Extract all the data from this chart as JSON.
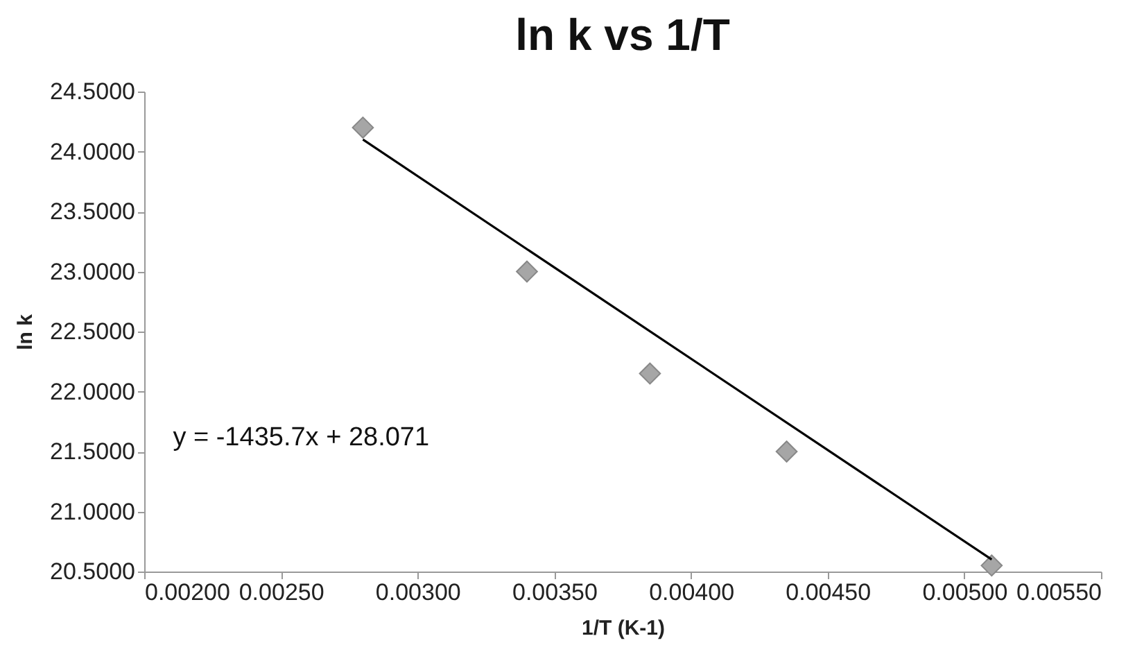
{
  "chart_data": {
    "type": "scatter",
    "title": "ln k vs 1/T",
    "xlabel": "1/T (K-1)",
    "ylabel": "ln k",
    "xlim": [
      0.002,
      0.0055
    ],
    "xticks": [
      {
        "value": 0.002,
        "label": "0.00200"
      },
      {
        "value": 0.0025,
        "label": "0.00250"
      },
      {
        "value": 0.003,
        "label": "0.00300"
      },
      {
        "value": 0.0035,
        "label": "0.00350"
      },
      {
        "value": 0.004,
        "label": "0.00400"
      },
      {
        "value": 0.0045,
        "label": "0.00450"
      },
      {
        "value": 0.005,
        "label": "0.00500"
      },
      {
        "value": 0.0055,
        "label": "0.00550"
      }
    ],
    "ylim": [
      20.5,
      24.5
    ],
    "yticks": [
      {
        "value": 20.5,
        "label": "20.5000"
      },
      {
        "value": 21,
        "label": "21.0000"
      },
      {
        "value": 21.5,
        "label": "21.5000"
      },
      {
        "value": 22,
        "label": "22.0000"
      },
      {
        "value": 22.5,
        "label": "22.5000"
      },
      {
        "value": 23,
        "label": "23.0000"
      },
      {
        "value": 23.5,
        "label": "23.5000"
      },
      {
        "value": 24,
        "label": "24.0000"
      },
      {
        "value": 24.5,
        "label": "24.5000"
      }
    ],
    "grid": false,
    "marker": "diamond",
    "annotations": [
      "y = -1435.7x + 28.071"
    ],
    "series": [
      {
        "color": "#a6a6a6",
        "x": [
          0.0028,
          0.0034,
          0.00385,
          0.00435,
          0.0051
        ],
        "values": [
          24.2,
          23.0,
          22.15,
          21.5,
          20.55
        ]
      },
      {
        "type": "line",
        "color": "#000000",
        "x": [
          0.0028,
          0.0051
        ],
        "values": [
          24.1,
          20.6
        ],
        "marker": "none"
      }
    ]
  }
}
